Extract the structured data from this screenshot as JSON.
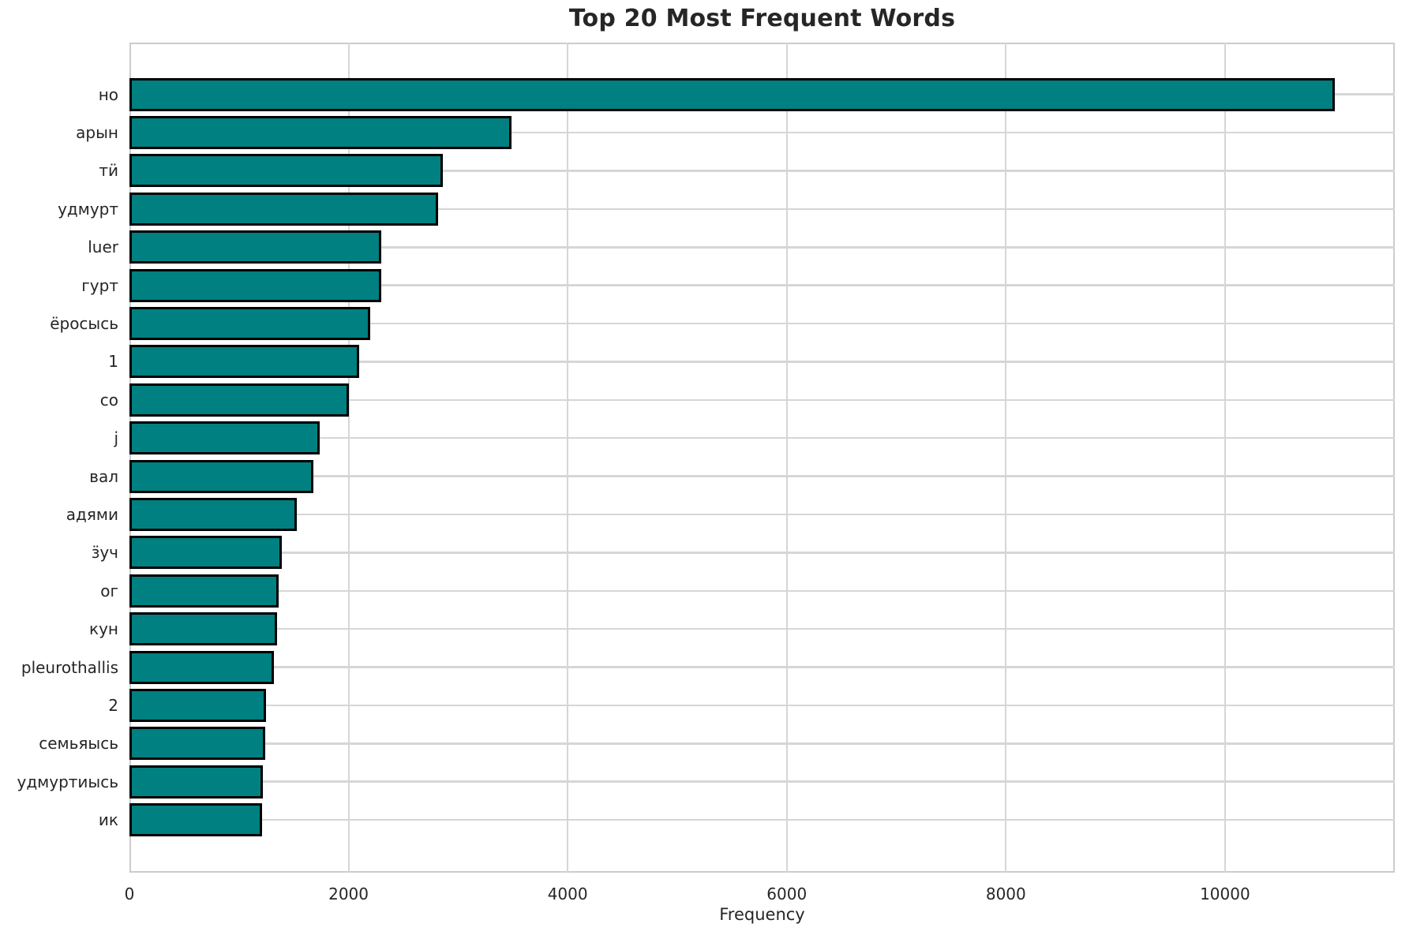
{
  "title": "Top 20 Most Frequent Words",
  "colors": {
    "bar_fill": "#008080",
    "bar_edge": "#000000",
    "grid": "#d6d6d6",
    "spine": "#cccccc",
    "text": "#262626",
    "background": "#ffffff"
  },
  "chart_data": {
    "type": "bar",
    "orientation": "horizontal",
    "title": "Top 20 Most Frequent Words",
    "xlabel": "Frequency",
    "ylabel": "",
    "categories": [
      "но",
      "арын",
      "тӥ",
      "удмурт",
      "luer",
      "гурт",
      "ёросысь",
      "1",
      "со",
      "j",
      "вал",
      "адями",
      "ӟуч",
      "ог",
      "кун",
      "pleurothallis",
      "2",
      "семьяысь",
      "удмуртиысь",
      "ик"
    ],
    "values": [
      11000,
      3490,
      2860,
      2820,
      2300,
      2300,
      2200,
      2100,
      2000,
      1740,
      1680,
      1530,
      1390,
      1360,
      1350,
      1320,
      1250,
      1240,
      1220,
      1210
    ],
    "xlim": [
      0,
      11550
    ],
    "xticks": [
      0,
      2000,
      4000,
      6000,
      8000,
      10000
    ],
    "grid": true,
    "legend": false,
    "bar_color": "#008080",
    "bar_edge_color": "#000000"
  }
}
